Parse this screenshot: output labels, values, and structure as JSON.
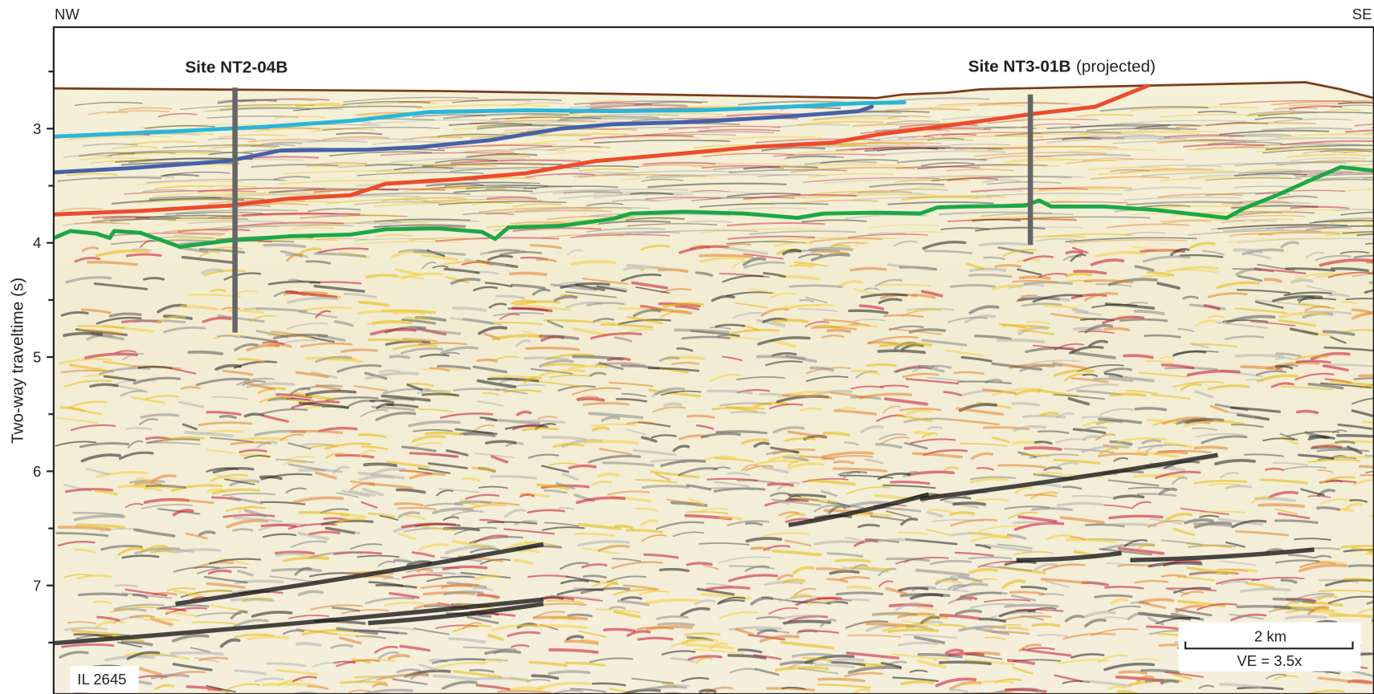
{
  "orientation": {
    "left": "NW",
    "right": "SE"
  },
  "sites": [
    {
      "name": "Site NT2-04B"
    },
    {
      "name": "Site NT3-01B",
      "note": "(projected)"
    }
  ],
  "axis": {
    "title": "Two-way traveltime (s)",
    "ticks": [
      3,
      4,
      5,
      6,
      7
    ]
  },
  "line_id": "IL 2645",
  "scale_bar": {
    "length": "2 km",
    "vertical_exaggeration": "VE = 3.5x"
  }
}
